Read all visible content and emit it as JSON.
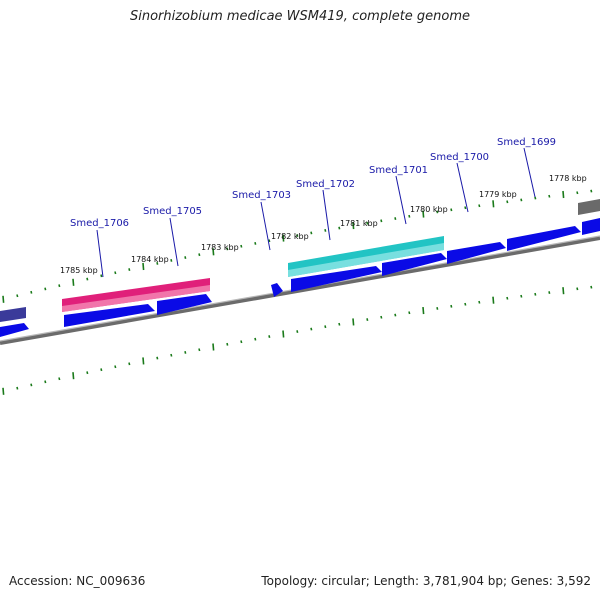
{
  "title": "Sinorhizobium medicae WSM419, complete genome",
  "accession_text": "Accession: NC_009636",
  "summary_text": "Topology: circular; Length: 3,781,904 bp; Genes: 3,592",
  "colors": {
    "cds": "#0a0ae6",
    "highlight_pink": "#e0207a",
    "highlight_cyan": "#22c4c4",
    "backbone": "#808080",
    "tick": "#1a7a1a",
    "label": "#1a1aa8"
  },
  "gene_labels": [
    "Smed_1706",
    "Smed_1705",
    "Smed_1703",
    "Smed_1702",
    "Smed_1701",
    "Smed_1700",
    "Smed_1699"
  ],
  "tick_labels": [
    "1785 kbp",
    "1784 kbp",
    "1783 kbp",
    "1782 kbp",
    "1781 kbp",
    "1780 kbp",
    "1779 kbp",
    "1778 kbp"
  ]
}
